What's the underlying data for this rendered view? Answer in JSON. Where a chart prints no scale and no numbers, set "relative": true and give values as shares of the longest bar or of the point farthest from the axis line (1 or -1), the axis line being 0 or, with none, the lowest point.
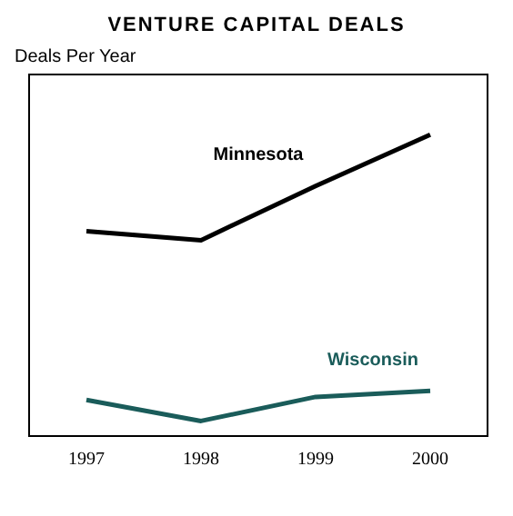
{
  "chart_data": {
    "type": "line",
    "title": "VENTURE CAPITAL DEALS",
    "ylabel": "Deals Per Year",
    "relative": true,
    "categories": [
      "1997",
      "1998",
      "1999",
      "2000"
    ],
    "series": [
      {
        "name": "Minnesota",
        "color": "#000000",
        "values": [
          0.68,
          0.65,
          0.83,
          1
        ]
      },
      {
        "name": "Wisconsin",
        "color": "#1a5c5a",
        "values": [
          0.12,
          0.05,
          0.13,
          0.15
        ]
      }
    ],
    "legend": false,
    "grid": false,
    "tick_labels": "x",
    "marker": "none",
    "line_style": "solid"
  }
}
